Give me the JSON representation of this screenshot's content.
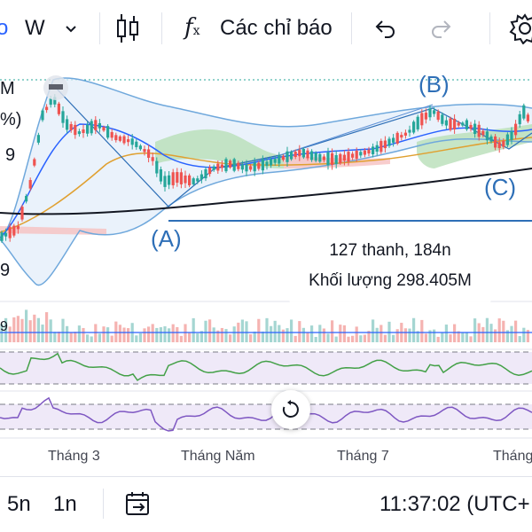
{
  "toolbar": {
    "symbol_partial": "o",
    "interval": "W",
    "indicators_label": "Các chỉ báo"
  },
  "chart": {
    "left_labels": {
      "top": "M",
      "pct": "%)",
      "nine_a": "9",
      "nine_b": "9",
      "nine_c": "9"
    },
    "wave_labels": {
      "a": "(A)",
      "b": "(B)",
      "c": "(C)"
    },
    "info": {
      "bars": "127 thanh, 184n",
      "volume": "Khối lượng 298.405M"
    },
    "x_axis": [
      "Tháng 3",
      "Tháng Năm",
      "Tháng 7",
      "Tháng"
    ],
    "colors": {
      "up": "#26a69a",
      "down": "#ef5350",
      "wave": "#2e6fb7",
      "rsi": "#43a047",
      "stoch": "#7e57c2",
      "ma_black": "#131722",
      "ma_orange": "#e0a030",
      "bb_blue": "#2962ff"
    }
  },
  "bottom_bar": {
    "range_5": "5n",
    "range_1": "1n",
    "time": "11:37:02 (UTC+"
  }
}
